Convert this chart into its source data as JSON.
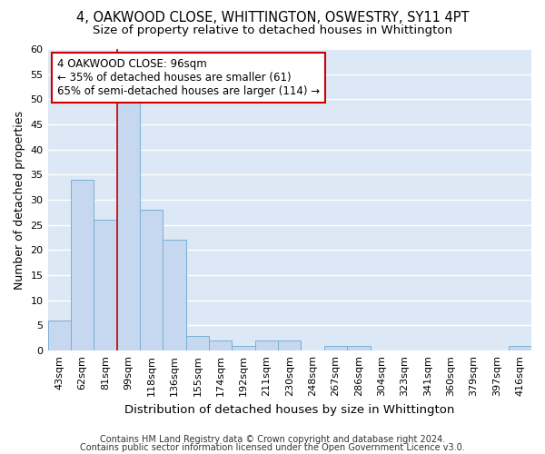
{
  "title_line1": "4, OAKWOOD CLOSE, WHITTINGTON, OSWESTRY, SY11 4PT",
  "title_line2": "Size of property relative to detached houses in Whittington",
  "xlabel": "Distribution of detached houses by size in Whittington",
  "ylabel": "Number of detached properties",
  "bar_color": "#c5d8ef",
  "bar_edge_color": "#7aafd4",
  "axes_bg_color": "#dce8f5",
  "fig_bg_color": "#ffffff",
  "grid_color": "#ffffff",
  "categories": [
    "43sqm",
    "62sqm",
    "81sqm",
    "99sqm",
    "118sqm",
    "136sqm",
    "155sqm",
    "174sqm",
    "192sqm",
    "211sqm",
    "230sqm",
    "248sqm",
    "267sqm",
    "286sqm",
    "304sqm",
    "323sqm",
    "341sqm",
    "360sqm",
    "379sqm",
    "397sqm",
    "416sqm"
  ],
  "values": [
    6,
    34,
    26,
    50,
    28,
    22,
    3,
    2,
    1,
    2,
    2,
    0,
    1,
    1,
    0,
    0,
    0,
    0,
    0,
    0,
    1
  ],
  "vline_x": 2.5,
  "vline_color": "#cc0000",
  "annotation_line1": "4 OAKWOOD CLOSE: 96sqm",
  "annotation_line2": "← 35% of detached houses are smaller (61)",
  "annotation_line3": "65% of semi-detached houses are larger (114) →",
  "annotation_box_color": "#ffffff",
  "annotation_box_edge_color": "#cc0000",
  "ylim": [
    0,
    60
  ],
  "yticks": [
    0,
    5,
    10,
    15,
    20,
    25,
    30,
    35,
    40,
    45,
    50,
    55,
    60
  ],
  "footer_line1": "Contains HM Land Registry data © Crown copyright and database right 2024.",
  "footer_line2": "Contains public sector information licensed under the Open Government Licence v3.0.",
  "title_fontsize": 10.5,
  "subtitle_fontsize": 9.5,
  "xlabel_fontsize": 9.5,
  "ylabel_fontsize": 9,
  "tick_fontsize": 8,
  "annotation_fontsize": 8.5,
  "footer_fontsize": 7
}
